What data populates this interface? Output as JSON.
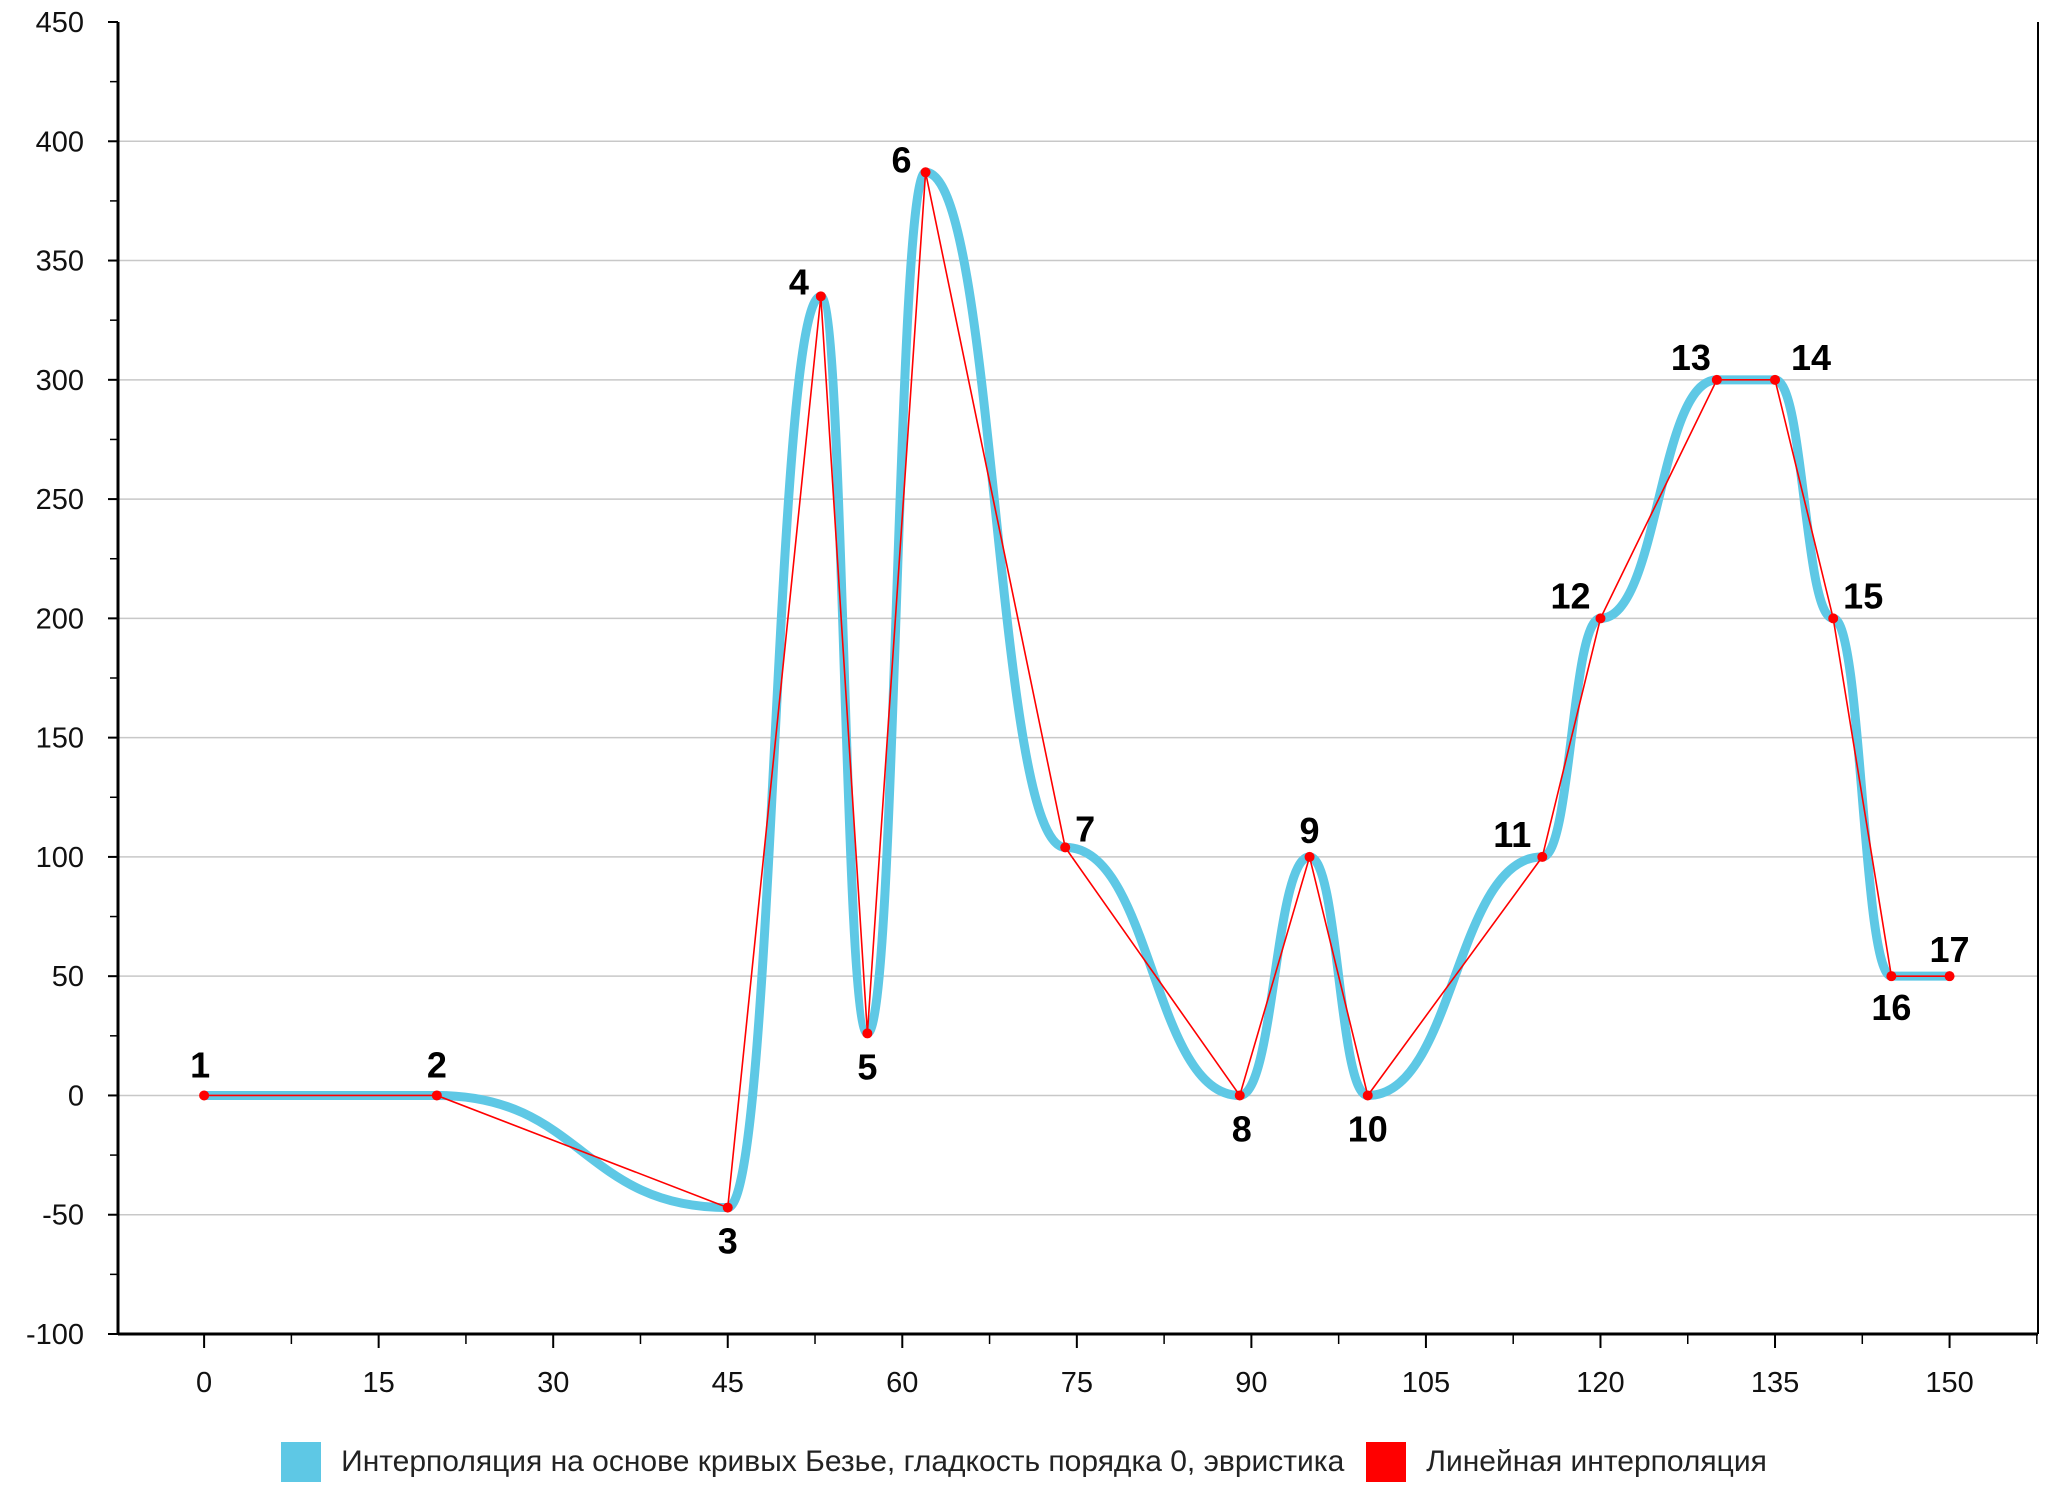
{
  "chart_data": {
    "type": "line",
    "xlim": [
      -7.4,
      157.6
    ],
    "ylim": [
      -100,
      450
    ],
    "x_ticks": [
      0,
      15,
      30,
      45,
      60,
      75,
      90,
      105,
      120,
      135,
      150
    ],
    "x_tick_labels": [
      "0",
      "15",
      "30",
      "45",
      "60",
      "75",
      "90",
      "105",
      "120",
      "135",
      "150"
    ],
    "y_ticks": [
      -100,
      -50,
      0,
      50,
      100,
      150,
      200,
      250,
      300,
      350,
      400,
      450
    ],
    "y_tick_labels": [
      "-100",
      "-50",
      "0",
      "50",
      "100",
      "150",
      "200",
      "250",
      "300",
      "350",
      "400",
      "450"
    ],
    "grid": "horizontal",
    "legend_position": "bottom-center",
    "series": [
      {
        "name": "Интерполяция на основе кривых Безье, гладкость порядка 0, эвристика",
        "style": "bezier",
        "color": "#5ec8e5"
      },
      {
        "name": "Линейная интерполяция",
        "style": "linear",
        "color": "#ff0000"
      }
    ],
    "points": [
      {
        "label": "1",
        "x": 0,
        "y": 0
      },
      {
        "label": "2",
        "x": 20,
        "y": 0
      },
      {
        "label": "3",
        "x": 45,
        "y": -47
      },
      {
        "label": "4",
        "x": 53,
        "y": 335
      },
      {
        "label": "5",
        "x": 57,
        "y": 26
      },
      {
        "label": "6",
        "x": 62,
        "y": 387
      },
      {
        "label": "7",
        "x": 74,
        "y": 104
      },
      {
        "label": "8",
        "x": 89,
        "y": 0
      },
      {
        "label": "9",
        "x": 95,
        "y": 100
      },
      {
        "label": "10",
        "x": 100,
        "y": 0
      },
      {
        "label": "11",
        "x": 115,
        "y": 100
      },
      {
        "label": "12",
        "x": 120,
        "y": 200
      },
      {
        "label": "13",
        "x": 130,
        "y": 300
      },
      {
        "label": "14",
        "x": 135,
        "y": 300
      },
      {
        "label": "15",
        "x": 140,
        "y": 200
      },
      {
        "label": "16",
        "x": 145,
        "y": 50
      },
      {
        "label": "17",
        "x": 150,
        "y": 50
      }
    ]
  }
}
